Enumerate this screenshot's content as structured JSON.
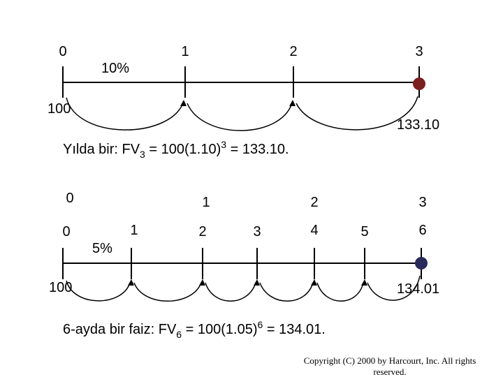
{
  "annual": {
    "periods": [
      "0",
      "1",
      "2",
      "3"
    ],
    "rate": "10%",
    "present_value": "100",
    "future_value": "133.10",
    "formula": {
      "prefix": "Yılda bir:  FV",
      "sub": "3",
      "middle": " = 100(1.10)",
      "sup": "3",
      "suffix": " = 133.10."
    }
  },
  "semiannual": {
    "years": [
      "0",
      "1",
      "2",
      "3"
    ],
    "periods": [
      "0",
      "1",
      "2",
      "3",
      "4",
      "5",
      "6"
    ],
    "rate": "5%",
    "present_value": "100",
    "future_value": "134.01",
    "formula": {
      "prefix": "6-ayda bir faiz: FV",
      "sub": "6",
      "middle": " = 100(1.05)",
      "sup": "6",
      "suffix": " = 134.01."
    }
  },
  "footer": {
    "line1": "Copyright (C) 2000 by Harcourt, Inc. All rights",
    "line2": "reserved."
  }
}
